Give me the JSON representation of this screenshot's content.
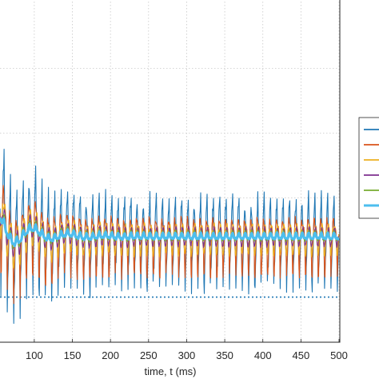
{
  "chart_data": {
    "type": "line",
    "xlabel": "time, t (ms)",
    "ylabel": "",
    "xlim": [
      0,
      500
    ],
    "x_ticks": [
      100,
      150,
      200,
      250,
      300,
      350,
      400,
      450,
      500
    ],
    "x_tick_labels": [
      "100",
      "150",
      "200",
      "250",
      "300",
      "350",
      "400",
      "450",
      "500"
    ],
    "ylim": [
      0,
      1
    ],
    "y_grid_levels": [
      0.18,
      0.48,
      0.78
    ],
    "dotted_reference_level": -0.28,
    "grid": true,
    "legend_position": "right",
    "steady_level": 0,
    "transient_end_ms": 200,
    "oscillation_period_ms": 8.33,
    "series": [
      {
        "color": "#1f77b4",
        "amplitude": 0.11,
        "offset": 0.0
      },
      {
        "color": "#d95319",
        "amplitude": 0.085,
        "offset": 0.0
      },
      {
        "color": "#edb120",
        "amplitude": 0.06,
        "offset": 0.0
      },
      {
        "color": "#7e2f8e",
        "amplitude": 0.035,
        "offset": 0.0
      },
      {
        "color": "#77ac30",
        "amplitude": 0.02,
        "offset": 0.0
      },
      {
        "color": "#4dbeee",
        "amplitude": 0.012,
        "offset": 0.0
      }
    ]
  }
}
